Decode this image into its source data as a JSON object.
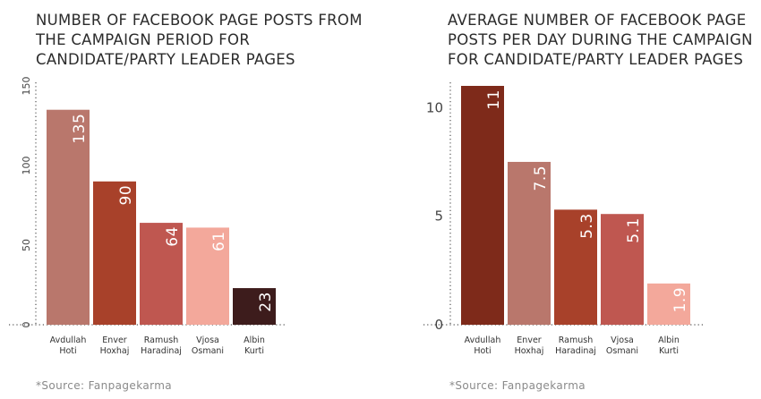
{
  "charts": [
    {
      "title_lines": [
        "NUMBER OF FACEBOOK PAGE POSTS FROM",
        "THE CAMPAIGN PERIOD FOR",
        "CANDIDATE/PARTY LEADER PAGES"
      ],
      "source": "*Source: Fanpagekarma"
    },
    {
      "title_lines": [
        "AVERAGE NUMBER OF FACEBOOK PAGE",
        "POSTS PER DAY DURING THE CAMPAIGN",
        "FOR CANDIDATE/PARTY LEADER PAGES"
      ],
      "source": "*Source: Fanpagekarma"
    }
  ],
  "chart_data": [
    {
      "type": "bar",
      "title": "NUMBER OF FACEBOOK PAGE POSTS FROM THE CAMPAIGN PERIOD FOR CANDIDATE/PARTY LEADER PAGES",
      "categories": [
        [
          "Avdullah",
          "Hoti"
        ],
        [
          "Enver",
          "Hoxhaj"
        ],
        [
          "Ramush",
          "Haradinaj"
        ],
        [
          "Vjosa",
          "Osmani"
        ],
        [
          "Albin",
          "Kurti"
        ]
      ],
      "values": [
        135,
        90,
        64,
        61,
        23
      ],
      "value_labels": [
        "135",
        "90",
        "64",
        "61",
        "23"
      ],
      "colors": [
        "#b9776c",
        "#a8412a",
        "#bf5750",
        "#f3a89b",
        "#3d1c1c"
      ],
      "ylim": [
        0,
        150
      ],
      "yticks": [
        0,
        50,
        100,
        150
      ],
      "ytick_rotated": true,
      "xlabel": "",
      "ylabel": ""
    },
    {
      "type": "bar",
      "title": "AVERAGE NUMBER OF FACEBOOK PAGE POSTS PER DAY DURING THE CAMPAIGN FOR CANDIDATE/PARTY LEADER PAGES",
      "categories": [
        [
          "Avdullah",
          "Hoti"
        ],
        [
          "Enver",
          "Hoxhaj"
        ],
        [
          "Ramush",
          "Haradinaj"
        ],
        [
          "Vjosa",
          "Osmani"
        ],
        [
          "Albin",
          "Kurti"
        ]
      ],
      "values": [
        11,
        7.5,
        5.3,
        5.1,
        1.9
      ],
      "value_labels": [
        "11",
        "7.5",
        "5.3",
        "5.1",
        "1.9"
      ],
      "colors": [
        "#7e2a1a",
        "#b9776c",
        "#a8412a",
        "#bf5750",
        "#f3a89b"
      ],
      "ylim": [
        0,
        11
      ],
      "yticks": [
        0,
        5,
        10
      ],
      "ytick_rotated": false,
      "xlabel": "",
      "ylabel": ""
    }
  ]
}
